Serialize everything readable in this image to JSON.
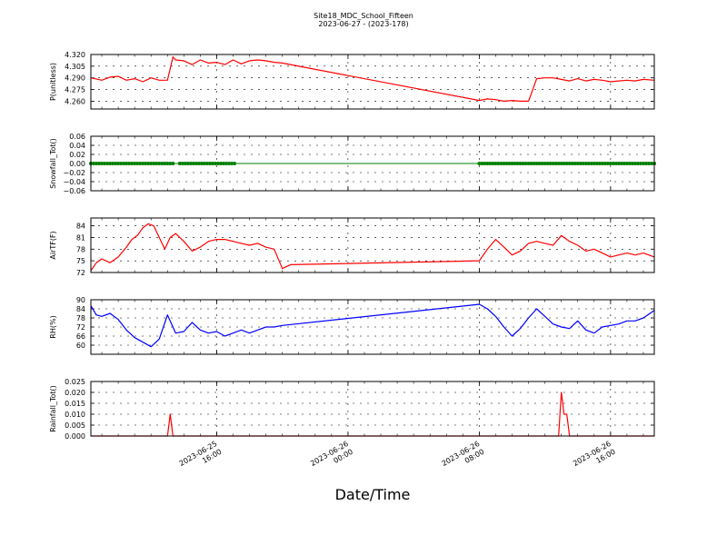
{
  "title": "Site18_MDC_School_Fifteen",
  "subtitle": "2023-06-27 - (2023-178)",
  "xlabel": "Date/Time",
  "x_ticks": [
    {
      "t": "2023-06-25 16:00",
      "label_line1": "2023-06-25",
      "label_line2": "16:00"
    },
    {
      "t": "2023-06-26 00:00",
      "label_line1": "2023-06-26",
      "label_line2": "00:00"
    },
    {
      "t": "2023-06-26 08:00",
      "label_line1": "2023-06-26",
      "label_line2": "08:00"
    },
    {
      "t": "2023-06-26 16:00",
      "label_line1": "2023-06-26",
      "label_line2": "16:00"
    }
  ],
  "x_range": [
    "2023-06-25 08:20",
    "2023-06-26 18:40"
  ],
  "chart_data": [
    {
      "type": "line",
      "ylabel": "P(unitless)",
      "color": "#ff0000",
      "ylim": [
        4.25,
        4.32
      ],
      "yticks": [
        "4.260",
        "4.275",
        "4.290",
        "4.305",
        "4.320"
      ],
      "x": [
        "2023-06-25 08:20",
        "2023-06-25 09:00",
        "2023-06-25 09:30",
        "2023-06-25 10:00",
        "2023-06-25 10:30",
        "2023-06-25 11:00",
        "2023-06-25 11:30",
        "2023-06-25 12:00",
        "2023-06-25 12:30",
        "2023-06-25 13:00",
        "2023-06-25 13:20",
        "2023-06-25 13:30",
        "2023-06-25 14:00",
        "2023-06-25 14:30",
        "2023-06-25 15:00",
        "2023-06-25 15:30",
        "2023-06-25 16:00",
        "2023-06-25 16:30",
        "2023-06-25 17:00",
        "2023-06-25 17:30",
        "2023-06-25 18:00",
        "2023-06-25 18:30",
        "2023-06-25 19:00",
        "2023-06-25 19:30",
        "2023-06-25 20:00",
        "2023-06-25 20:30",
        "2023-06-25 21:00",
        "2023-06-26 08:00",
        "2023-06-26 08:30",
        "2023-06-26 09:00",
        "2023-06-26 09:30",
        "2023-06-26 10:00",
        "2023-06-26 10:30",
        "2023-06-26 11:00",
        "2023-06-26 11:30",
        "2023-06-26 12:00",
        "2023-06-26 12:30",
        "2023-06-26 13:00",
        "2023-06-26 13:30",
        "2023-06-26 14:00",
        "2023-06-26 14:30",
        "2023-06-26 15:00",
        "2023-06-26 15:30",
        "2023-06-26 16:00",
        "2023-06-26 16:30",
        "2023-06-26 17:00",
        "2023-06-26 17:30",
        "2023-06-26 18:00",
        "2023-06-26 18:40"
      ],
      "y": [
        4.29,
        4.287,
        4.291,
        4.292,
        4.287,
        4.289,
        4.285,
        4.29,
        4.287,
        4.287,
        4.317,
        4.313,
        4.312,
        4.307,
        4.313,
        4.309,
        4.31,
        4.307,
        4.313,
        4.308,
        4.312,
        4.313,
        4.312,
        4.31,
        4.309,
        4.307,
        4.305,
        4.261,
        4.263,
        4.262,
        4.26,
        4.261,
        4.26,
        4.26,
        4.289,
        4.29,
        4.29,
        4.288,
        4.286,
        4.289,
        4.286,
        4.288,
        4.287,
        4.285,
        4.286,
        4.287,
        4.286,
        4.288,
        4.287
      ]
    },
    {
      "type": "scatter",
      "ylabel": "Snowfall_Tot()",
      "color": "#008000",
      "ylim": [
        -0.06,
        0.06
      ],
      "yticks": [
        "−0.06",
        "−0.04",
        "−0.02",
        "0.00",
        "0.02",
        "0.04",
        "0.06"
      ],
      "segments": [
        {
          "start": "2023-06-25 08:20",
          "end": "2023-06-25 13:20",
          "value": 0.0
        },
        {
          "start": "2023-06-25 13:45",
          "end": "2023-06-25 17:10",
          "value": 0.0
        },
        {
          "start": "2023-06-26 08:00",
          "end": "2023-06-26 18:40",
          "value": 0.0
        }
      ]
    },
    {
      "type": "line",
      "ylabel": "AirTF(F)",
      "color": "#ff0000",
      "ylim": [
        72,
        86
      ],
      "yticks": [
        "72",
        "75",
        "78",
        "81",
        "84"
      ],
      "x": [
        "2023-06-25 08:20",
        "2023-06-25 08:40",
        "2023-06-25 09:00",
        "2023-06-25 09:30",
        "2023-06-25 10:00",
        "2023-06-25 10:30",
        "2023-06-25 10:50",
        "2023-06-25 11:10",
        "2023-06-25 11:30",
        "2023-06-25 11:50",
        "2023-06-25 12:10",
        "2023-06-25 12:30",
        "2023-06-25 12:50",
        "2023-06-25 13:10",
        "2023-06-25 13:30",
        "2023-06-25 14:00",
        "2023-06-25 14:30",
        "2023-06-25 15:00",
        "2023-06-25 15:30",
        "2023-06-25 16:00",
        "2023-06-25 16:30",
        "2023-06-25 17:00",
        "2023-06-25 17:30",
        "2023-06-25 18:00",
        "2023-06-25 18:30",
        "2023-06-25 19:00",
        "2023-06-25 19:30",
        "2023-06-25 20:00",
        "2023-06-25 20:30",
        "2023-06-26 08:00",
        "2023-06-26 08:30",
        "2023-06-26 09:00",
        "2023-06-26 09:30",
        "2023-06-26 10:00",
        "2023-06-26 10:30",
        "2023-06-26 11:00",
        "2023-06-26 11:30",
        "2023-06-26 12:00",
        "2023-06-26 12:30",
        "2023-06-26 13:00",
        "2023-06-26 13:30",
        "2023-06-26 14:00",
        "2023-06-26 14:30",
        "2023-06-26 15:00",
        "2023-06-26 15:30",
        "2023-06-26 16:00",
        "2023-06-26 16:30",
        "2023-06-26 17:00",
        "2023-06-26 17:30",
        "2023-06-26 18:00",
        "2023-06-26 18:40"
      ],
      "y": [
        72.5,
        74.5,
        75.5,
        74.5,
        76.0,
        78.5,
        80.5,
        81.5,
        83.5,
        84.5,
        84.0,
        81.0,
        78.0,
        81.0,
        82.0,
        80.0,
        77.5,
        78.5,
        80.0,
        80.5,
        80.5,
        80.0,
        79.5,
        79.0,
        79.5,
        78.5,
        78.0,
        73.0,
        74.0,
        75.0,
        78.0,
        80.5,
        78.5,
        76.5,
        77.5,
        79.5,
        80.0,
        79.5,
        79.0,
        81.5,
        80.0,
        79.0,
        77.5,
        78.0,
        77.0,
        76.0,
        76.5,
        77.0,
        76.5,
        77.0,
        76.0
      ]
    },
    {
      "type": "line",
      "ylabel": "RH(%)",
      "color": "#0000ff",
      "ylim": [
        54,
        90
      ],
      "yticks": [
        "60",
        "66",
        "72",
        "78",
        "84",
        "90"
      ],
      "x": [
        "2023-06-25 08:20",
        "2023-06-25 08:40",
        "2023-06-25 09:00",
        "2023-06-25 09:30",
        "2023-06-25 10:00",
        "2023-06-25 10:30",
        "2023-06-25 11:00",
        "2023-06-25 11:30",
        "2023-06-25 12:00",
        "2023-06-25 12:30",
        "2023-06-25 13:00",
        "2023-06-25 13:30",
        "2023-06-25 14:00",
        "2023-06-25 14:30",
        "2023-06-25 15:00",
        "2023-06-25 15:30",
        "2023-06-25 16:00",
        "2023-06-25 16:30",
        "2023-06-25 17:00",
        "2023-06-25 17:30",
        "2023-06-25 18:00",
        "2023-06-25 18:30",
        "2023-06-25 19:00",
        "2023-06-25 19:30",
        "2023-06-25 20:00",
        "2023-06-26 08:00",
        "2023-06-26 08:30",
        "2023-06-26 09:00",
        "2023-06-26 09:30",
        "2023-06-26 10:00",
        "2023-06-26 10:30",
        "2023-06-26 11:00",
        "2023-06-26 11:30",
        "2023-06-26 12:00",
        "2023-06-26 12:30",
        "2023-06-26 13:00",
        "2023-06-26 13:30",
        "2023-06-26 14:00",
        "2023-06-26 14:30",
        "2023-06-26 15:00",
        "2023-06-26 15:30",
        "2023-06-26 16:00",
        "2023-06-26 16:30",
        "2023-06-26 17:00",
        "2023-06-26 17:30",
        "2023-06-26 18:00",
        "2023-06-26 18:40"
      ],
      "y": [
        86,
        80,
        79,
        81,
        77,
        70,
        65,
        62,
        59,
        64,
        80,
        68,
        69,
        75,
        70,
        68,
        69,
        66,
        68,
        70,
        68,
        70,
        72,
        72,
        73,
        87,
        84,
        79,
        72,
        66,
        71,
        78,
        84,
        79,
        74,
        72,
        71,
        76,
        70,
        68,
        72,
        73,
        74,
        76,
        76,
        78,
        83
      ]
    },
    {
      "type": "line",
      "ylabel": "Rainfall_Tot()",
      "color": "#ff0000",
      "ylim": [
        0.0,
        0.025
      ],
      "yticks": [
        "0.000",
        "0.005",
        "0.010",
        "0.015",
        "0.020",
        "0.025"
      ],
      "x": [
        "2023-06-25 08:20",
        "2023-06-25 13:00",
        "2023-06-25 13:10",
        "2023-06-25 13:20",
        "2023-06-25 21:00",
        "2023-06-26 08:00",
        "2023-06-26 12:50",
        "2023-06-26 13:00",
        "2023-06-26 13:10",
        "2023-06-26 13:20",
        "2023-06-26 13:30",
        "2023-06-26 18:40"
      ],
      "y": [
        0.0,
        0.0,
        0.01,
        0.0,
        0.0,
        0.0,
        0.0,
        0.02,
        0.01,
        0.01,
        0.0,
        0.0
      ]
    }
  ]
}
